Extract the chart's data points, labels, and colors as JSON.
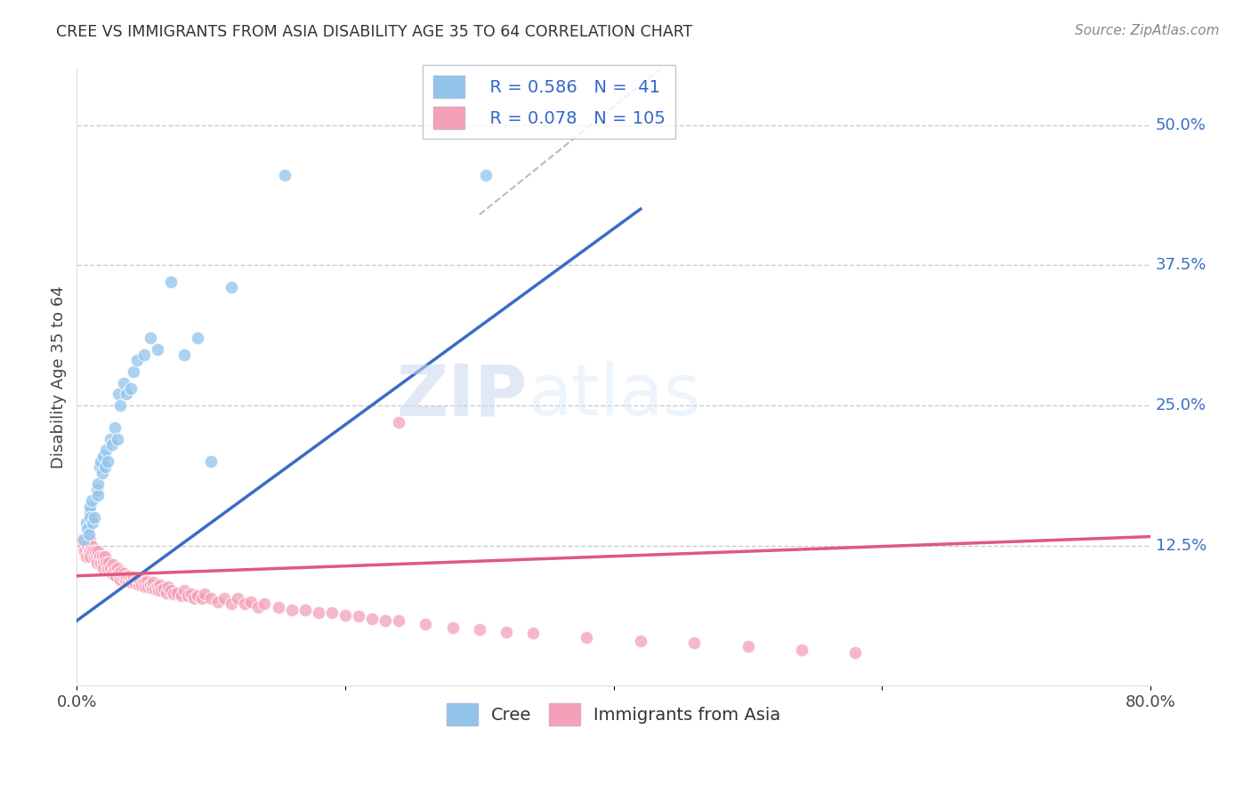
{
  "title": "CREE VS IMMIGRANTS FROM ASIA DISABILITY AGE 35 TO 64 CORRELATION CHART",
  "source": "Source: ZipAtlas.com",
  "ylabel": "Disability Age 35 to 64",
  "xlim": [
    0.0,
    0.8
  ],
  "ylim": [
    0.0,
    0.55
  ],
  "ytick_positions": [
    0.125,
    0.25,
    0.375,
    0.5
  ],
  "ytick_labels": [
    "12.5%",
    "25.0%",
    "37.5%",
    "50.0%"
  ],
  "grid_color": "#cccccc",
  "background_color": "#ffffff",
  "cree_color": "#92C4EC",
  "asia_color": "#F4A0B8",
  "cree_line_color": "#3B6CC4",
  "asia_line_color": "#E05880",
  "dash_color": "#bbbbbb",
  "cree_R": 0.586,
  "cree_N": 41,
  "asia_R": 0.078,
  "asia_N": 105,
  "watermark_zip": "ZIP",
  "watermark_atlas": "atlas",
  "cree_line_x": [
    0.0,
    0.42
  ],
  "cree_line_y": [
    0.058,
    0.425
  ],
  "asia_line_x": [
    0.0,
    0.8
  ],
  "asia_line_y": [
    0.098,
    0.133
  ],
  "dash_line_x": [
    0.3,
    0.44
  ],
  "dash_line_y": [
    0.42,
    0.555
  ],
  "cree_scatter_x": [
    0.005,
    0.007,
    0.008,
    0.009,
    0.01,
    0.01,
    0.01,
    0.011,
    0.012,
    0.013,
    0.015,
    0.016,
    0.016,
    0.017,
    0.018,
    0.019,
    0.02,
    0.021,
    0.022,
    0.023,
    0.025,
    0.026,
    0.028,
    0.03,
    0.031,
    0.032,
    0.035,
    0.037,
    0.04,
    0.042,
    0.045,
    0.05,
    0.055,
    0.06,
    0.07,
    0.08,
    0.09,
    0.1,
    0.115,
    0.155,
    0.305
  ],
  "cree_scatter_y": [
    0.13,
    0.145,
    0.14,
    0.135,
    0.155,
    0.16,
    0.15,
    0.165,
    0.145,
    0.15,
    0.175,
    0.17,
    0.18,
    0.195,
    0.2,
    0.19,
    0.205,
    0.195,
    0.21,
    0.2,
    0.22,
    0.215,
    0.23,
    0.22,
    0.26,
    0.25,
    0.27,
    0.26,
    0.265,
    0.28,
    0.29,
    0.295,
    0.31,
    0.3,
    0.36,
    0.295,
    0.31,
    0.2,
    0.355,
    0.455,
    0.455
  ],
  "asia_scatter_x": [
    0.004,
    0.005,
    0.006,
    0.007,
    0.008,
    0.009,
    0.01,
    0.01,
    0.01,
    0.011,
    0.012,
    0.013,
    0.014,
    0.015,
    0.015,
    0.016,
    0.017,
    0.018,
    0.019,
    0.02,
    0.02,
    0.021,
    0.022,
    0.023,
    0.024,
    0.025,
    0.026,
    0.027,
    0.028,
    0.029,
    0.03,
    0.031,
    0.032,
    0.033,
    0.034,
    0.035,
    0.036,
    0.037,
    0.038,
    0.039,
    0.04,
    0.041,
    0.042,
    0.043,
    0.045,
    0.046,
    0.047,
    0.048,
    0.05,
    0.051,
    0.052,
    0.053,
    0.055,
    0.056,
    0.057,
    0.058,
    0.06,
    0.061,
    0.062,
    0.063,
    0.065,
    0.067,
    0.068,
    0.07,
    0.072,
    0.075,
    0.078,
    0.08,
    0.083,
    0.085,
    0.087,
    0.09,
    0.093,
    0.095,
    0.1,
    0.105,
    0.11,
    0.115,
    0.12,
    0.125,
    0.13,
    0.135,
    0.14,
    0.15,
    0.16,
    0.17,
    0.18,
    0.19,
    0.2,
    0.21,
    0.22,
    0.23,
    0.24,
    0.26,
    0.28,
    0.3,
    0.32,
    0.34,
    0.38,
    0.42,
    0.46,
    0.5,
    0.54,
    0.58,
    0.24
  ],
  "asia_scatter_y": [
    0.13,
    0.125,
    0.12,
    0.115,
    0.125,
    0.12,
    0.13,
    0.12,
    0.115,
    0.125,
    0.12,
    0.115,
    0.12,
    0.115,
    0.11,
    0.12,
    0.115,
    0.11,
    0.115,
    0.11,
    0.105,
    0.115,
    0.11,
    0.105,
    0.11,
    0.105,
    0.1,
    0.108,
    0.103,
    0.098,
    0.105,
    0.1,
    0.095,
    0.102,
    0.097,
    0.1,
    0.095,
    0.098,
    0.093,
    0.098,
    0.095,
    0.092,
    0.097,
    0.092,
    0.095,
    0.09,
    0.095,
    0.09,
    0.092,
    0.088,
    0.093,
    0.088,
    0.09,
    0.087,
    0.092,
    0.087,
    0.088,
    0.085,
    0.09,
    0.085,
    0.087,
    0.083,
    0.088,
    0.085,
    0.082,
    0.083,
    0.08,
    0.085,
    0.08,
    0.082,
    0.078,
    0.08,
    0.078,
    0.082,
    0.078,
    0.075,
    0.078,
    0.073,
    0.078,
    0.073,
    0.075,
    0.07,
    0.073,
    0.07,
    0.068,
    0.068,
    0.065,
    0.065,
    0.063,
    0.062,
    0.06,
    0.058,
    0.058,
    0.055,
    0.052,
    0.05,
    0.048,
    0.047,
    0.043,
    0.04,
    0.038,
    0.035,
    0.032,
    0.03,
    0.235
  ]
}
